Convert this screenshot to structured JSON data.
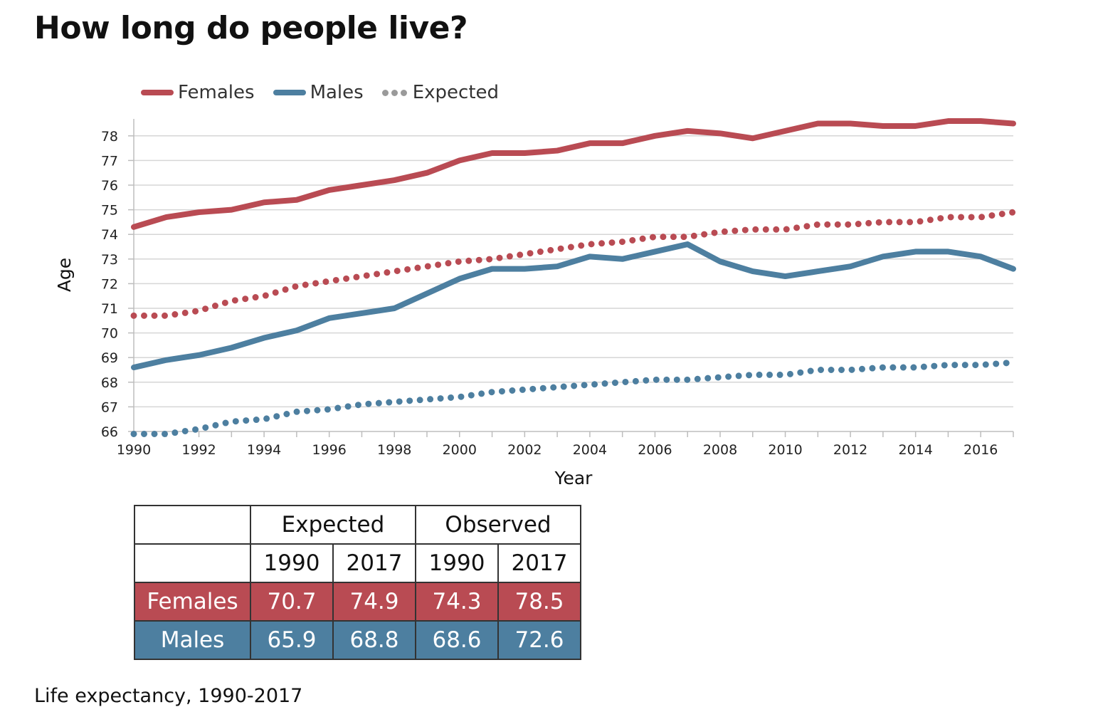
{
  "title": "How long do people live?",
  "caption": "Life expectancy, 1990-2017",
  "colors": {
    "females": "#b94b53",
    "males": "#4d7fa0",
    "expected_legend": "#9a9a9a",
    "grid": "#d6d6d6"
  },
  "legend": [
    {
      "label": "Females",
      "style": "solid",
      "color": "#b94b53"
    },
    {
      "label": "Males",
      "style": "solid",
      "color": "#4d7fa0"
    },
    {
      "label": "Expected",
      "style": "dotted",
      "color": "#9a9a9a"
    }
  ],
  "chart_data": {
    "type": "line",
    "xlabel": "Year",
    "ylabel": "Age",
    "xlim": [
      1990,
      2017
    ],
    "ylim": [
      66,
      78.6
    ],
    "xticks": [
      "1990",
      "1992",
      "1994",
      "1996",
      "1998",
      "2000",
      "2002",
      "2004",
      "2006",
      "2008",
      "2010",
      "2012",
      "2014",
      "2016"
    ],
    "yticks": [
      "66",
      "67",
      "68",
      "69",
      "70",
      "71",
      "72",
      "73",
      "74",
      "75",
      "76",
      "77",
      "78"
    ],
    "grid": true,
    "legend_position": "top-left",
    "x": [
      1990,
      1991,
      1992,
      1993,
      1994,
      1995,
      1996,
      1997,
      1998,
      1999,
      2000,
      2001,
      2002,
      2003,
      2004,
      2005,
      2006,
      2007,
      2008,
      2009,
      2010,
      2011,
      2012,
      2013,
      2014,
      2015,
      2016,
      2017
    ],
    "series": [
      {
        "name": "Females",
        "style": "solid",
        "color": "#b94b53",
        "values": [
          74.3,
          74.7,
          74.9,
          75.0,
          75.3,
          75.4,
          75.8,
          76.0,
          76.2,
          76.5,
          77.0,
          77.3,
          77.3,
          77.4,
          77.7,
          77.7,
          78.0,
          78.2,
          78.1,
          77.9,
          78.2,
          78.5,
          78.5,
          78.4,
          78.4,
          78.6,
          78.6,
          78.5
        ]
      },
      {
        "name": "Males",
        "style": "solid",
        "color": "#4d7fa0",
        "values": [
          68.6,
          68.9,
          69.1,
          69.4,
          69.8,
          70.1,
          70.6,
          70.8,
          71.0,
          71.6,
          72.2,
          72.6,
          72.6,
          72.7,
          73.1,
          73.0,
          73.3,
          73.6,
          72.9,
          72.5,
          72.3,
          72.5,
          72.7,
          73.1,
          73.3,
          73.3,
          73.1,
          72.6
        ]
      },
      {
        "name": "Expected",
        "style": "dotted",
        "color": "#b94b53",
        "values": [
          70.7,
          70.7,
          70.9,
          71.3,
          71.5,
          71.9,
          72.1,
          72.3,
          72.5,
          72.7,
          72.9,
          73.0,
          73.2,
          73.4,
          73.6,
          73.7,
          73.9,
          73.9,
          74.1,
          74.2,
          74.2,
          74.4,
          74.4,
          74.5,
          74.5,
          74.7,
          74.7,
          74.9
        ]
      },
      {
        "name": "Expected",
        "style": "dotted",
        "color": "#4d7fa0",
        "values": [
          65.9,
          65.9,
          66.1,
          66.4,
          66.5,
          66.8,
          66.9,
          67.1,
          67.2,
          67.3,
          67.4,
          67.6,
          67.7,
          67.8,
          67.9,
          68.0,
          68.1,
          68.1,
          68.2,
          68.3,
          68.3,
          68.5,
          68.5,
          68.6,
          68.6,
          68.7,
          68.7,
          68.8
        ]
      }
    ]
  },
  "table": {
    "group_headers": [
      "",
      "Expected",
      "Observed"
    ],
    "sub_headers": [
      "",
      "1990",
      "2017",
      "1990",
      "2017"
    ],
    "rows": [
      {
        "label": "Females",
        "color": "#b94b53",
        "values": [
          "70.7",
          "74.9",
          "74.3",
          "78.5"
        ]
      },
      {
        "label": "Males",
        "color": "#4d7fa0",
        "values": [
          "65.9",
          "68.8",
          "68.6",
          "72.6"
        ]
      }
    ]
  }
}
